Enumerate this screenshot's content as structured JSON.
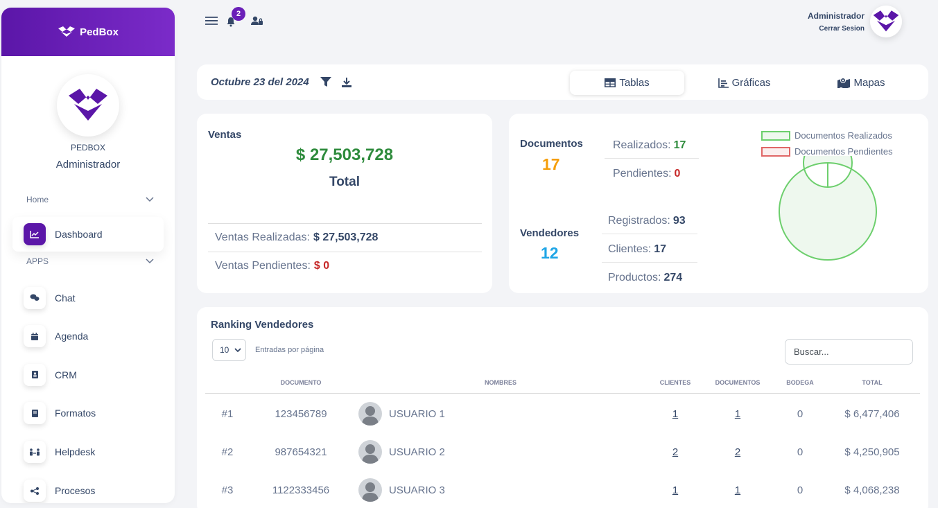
{
  "brand": {
    "name": "PedBox"
  },
  "profile": {
    "org": "PEDBOX",
    "role": "Administrador"
  },
  "sidebar": {
    "sections": [
      {
        "label": "Home"
      },
      {
        "label": "APPS"
      }
    ],
    "items": [
      {
        "label": "Dashboard",
        "icon": "chart-line-icon"
      },
      {
        "label": "Chat",
        "icon": "chat-icon"
      },
      {
        "label": "Agenda",
        "icon": "calendar-icon"
      },
      {
        "label": "CRM",
        "icon": "address-book-icon"
      },
      {
        "label": "Formatos",
        "icon": "book-icon"
      },
      {
        "label": "Helpdesk",
        "icon": "people-arrows-icon"
      },
      {
        "label": "Procesos",
        "icon": "share-nodes-icon"
      }
    ]
  },
  "topbar": {
    "notifications": "2",
    "user_name": "Administrador",
    "logout": "Cerrar Sesion"
  },
  "datebar": {
    "date": "Octubre 23 del 2024",
    "tabs": [
      {
        "label": "Tablas"
      },
      {
        "label": "Gráficas"
      },
      {
        "label": "Mapas"
      }
    ]
  },
  "ventas": {
    "title": "Ventas",
    "amount": "$ 27,503,728",
    "total_label": "Total",
    "realizadas_label": "Ventas Realizadas:",
    "realizadas_value": "$ 27,503,728",
    "pendientes_label": "Ventas Pendientes:",
    "pendientes_value": "$ 0"
  },
  "documentos": {
    "label": "Documentos",
    "count": "17",
    "realizados_label": "Realizados:",
    "realizados_value": "17",
    "pendientes_label": "Pendientes:",
    "pendientes_value": "0"
  },
  "vendedores": {
    "label": "Vendedores",
    "count": "12",
    "registrados_label": "Registrados:",
    "registrados_value": "93",
    "clientes_label": "Clientes:",
    "clientes_value": "17",
    "productos_label": "Productos:",
    "productos_value": "274"
  },
  "chart_data": {
    "type": "pie",
    "categories": [
      "Documentos Realizados",
      "Documentos Pendientes"
    ],
    "values": [
      17,
      0
    ],
    "colors": [
      "#6dcf6d",
      "#e06666"
    ],
    "legend": "top"
  },
  "ranking": {
    "title": "Ranking Vendedores",
    "per_page_value": "10",
    "per_page_label": "Entradas por página",
    "search_placeholder": "Buscar...",
    "columns": [
      "Documento",
      "Nombres",
      "Clientes",
      "Documentos",
      "Bodega",
      "Total"
    ],
    "rows": [
      {
        "rank": "#1",
        "documento": "123456789",
        "nombre": "USUARIO 1",
        "clientes": "1",
        "documentos": "1",
        "bodega": "0",
        "total": "$ 6,477,406"
      },
      {
        "rank": "#2",
        "documento": "987654321",
        "nombre": "USUARIO 2",
        "clientes": "2",
        "documentos": "2",
        "bodega": "0",
        "total": "$ 4,250,905"
      },
      {
        "rank": "#3",
        "documento": "1122333456",
        "nombre": "USUARIO 3",
        "clientes": "1",
        "documentos": "1",
        "bodega": "0",
        "total": "$ 4,068,238"
      }
    ]
  },
  "colors": {
    "accent": "#5b16a8",
    "green": "#2e8b3c",
    "orange": "#f59e0b",
    "blue": "#1ea5e6",
    "red": "#c62828"
  }
}
